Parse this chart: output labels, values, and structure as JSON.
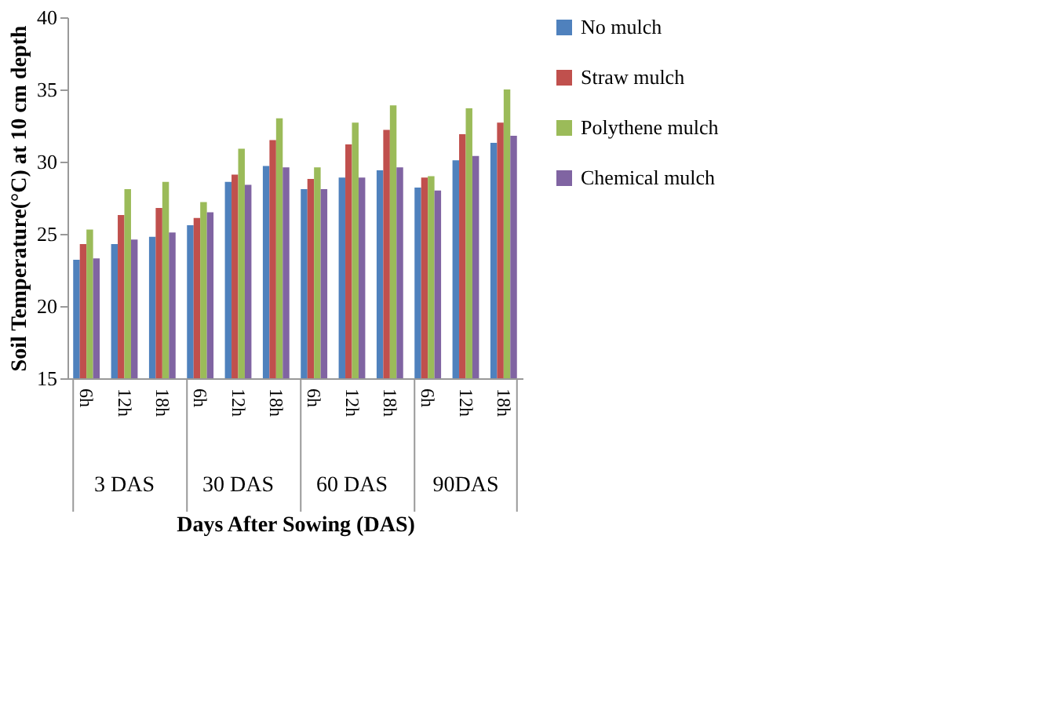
{
  "chart_data": {
    "type": "bar",
    "xlabel": "Days After Sowing (DAS)",
    "ylabel": "Soil Temperature(°C) at 10 cm depth",
    "categories": [
      "6h",
      "12h",
      "18h",
      "6h",
      "12h",
      "18h",
      "6h",
      "12h",
      "18h",
      "6h",
      "12h",
      "18h"
    ],
    "annotations": [
      "3 DAS",
      "30 DAS",
      "60 DAS",
      "90DAS"
    ],
    "series": [
      {
        "name": "No mulch",
        "color": "#4f81bd",
        "values": [
          23.2,
          24.3,
          24.8,
          25.6,
          28.6,
          29.7,
          28.1,
          28.9,
          29.4,
          28.2,
          30.1,
          31.3
        ]
      },
      {
        "name": "Straw mulch",
        "color": "#c0504d",
        "values": [
          24.3,
          26.3,
          26.8,
          26.1,
          29.1,
          31.5,
          28.8,
          31.2,
          32.2,
          28.9,
          31.9,
          32.7
        ]
      },
      {
        "name": "Polythene mulch",
        "color": "#9bbb59",
        "values": [
          25.3,
          28.1,
          28.6,
          27.2,
          30.9,
          33.0,
          29.6,
          32.7,
          33.9,
          29.0,
          33.7,
          35.0
        ]
      },
      {
        "name": "Chemical mulch",
        "color": "#8064a2",
        "values": [
          23.3,
          24.6,
          25.1,
          26.5,
          28.4,
          29.6,
          28.1,
          28.9,
          29.6,
          28.0,
          30.4,
          31.8
        ]
      }
    ],
    "ylim": [
      15,
      40
    ],
    "yticks": [
      15,
      20,
      25,
      30,
      35,
      40
    ],
    "grid": false,
    "legend": "right"
  }
}
